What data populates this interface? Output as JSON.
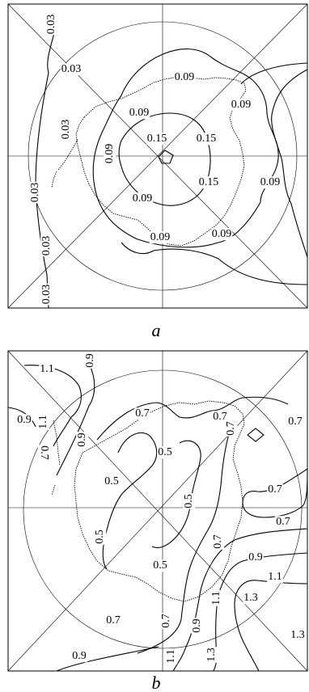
{
  "panels": [
    {
      "id": "a",
      "letter": "a",
      "labels": [
        {
          "text": "0.03"
        },
        {
          "text": "0.03"
        },
        {
          "text": "0.03"
        },
        {
          "text": "0.03"
        },
        {
          "text": "0.03"
        },
        {
          "text": "0.03"
        },
        {
          "text": "0.09"
        },
        {
          "text": "0.09"
        },
        {
          "text": "0.09"
        },
        {
          "text": "0.09"
        },
        {
          "text": "0.09"
        },
        {
          "text": "0.09"
        },
        {
          "text": "0.09"
        },
        {
          "text": "0.09"
        },
        {
          "text": "0.15"
        },
        {
          "text": "0.15"
        },
        {
          "text": "0.15"
        }
      ]
    },
    {
      "id": "b",
      "letter": "b",
      "labels": [
        {
          "text": "1.1"
        },
        {
          "text": "0.9"
        },
        {
          "text": "0.9"
        },
        {
          "text": "1.1"
        },
        {
          "text": "0.7"
        },
        {
          "text": "0.7"
        },
        {
          "text": "0.7"
        },
        {
          "text": "0.7"
        },
        {
          "text": "0.5"
        },
        {
          "text": "0.9"
        },
        {
          "text": "0.5"
        },
        {
          "text": "0.5"
        },
        {
          "text": "0.5"
        },
        {
          "text": "0.7"
        },
        {
          "text": "0.7"
        },
        {
          "text": "0.7"
        },
        {
          "text": "0.5"
        },
        {
          "text": "0.9"
        },
        {
          "text": "0.7"
        },
        {
          "text": "1.1"
        },
        {
          "text": "1.1"
        },
        {
          "text": "0.9"
        },
        {
          "text": "1.3"
        },
        {
          "text": "1.3"
        },
        {
          "text": "0.7"
        },
        {
          "text": "0.7"
        },
        {
          "text": "0.9"
        },
        {
          "text": "1.1"
        },
        {
          "text": "1.3"
        }
      ]
    }
  ]
}
